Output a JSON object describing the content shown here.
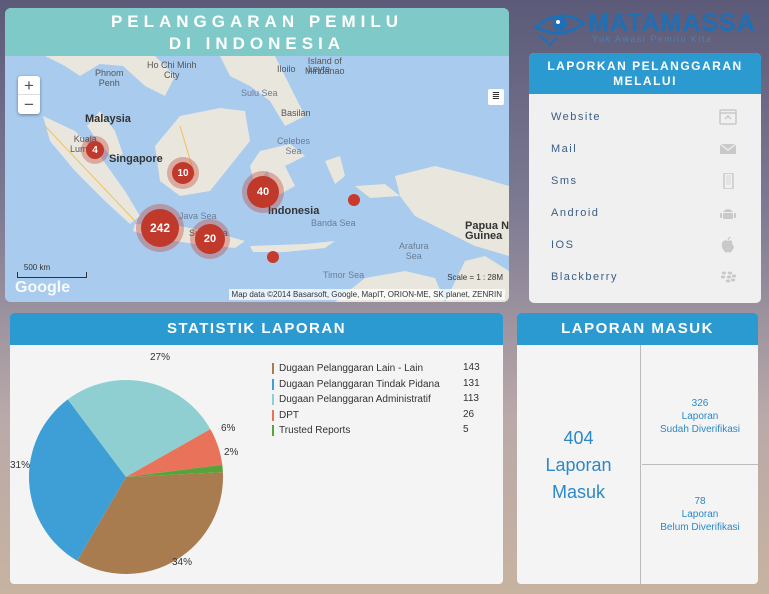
{
  "map_panel": {
    "title_line1": "PELANGGARAN PEMILU",
    "title_line2": "DI INDONESIA",
    "zoom_in": "+",
    "zoom_out": "−",
    "labels": {
      "phnom_penh": "Phnom\nPenh",
      "ho_chi_minh": "Ho Chi Minh\nCity",
      "malaysia": "Malaysia",
      "kuala_lumpur": "Kuala\nLumpur",
      "singapore": "Singapore",
      "sulu_sea": "Sulu Sea",
      "basilan": "Basilan",
      "island_of_mindanao": "Island of\nMindanao",
      "iloilo": "Iloilo",
      "leyte": "Leyte",
      "celebes_sea": "Celebes\nSea",
      "java_sea": "Java Sea",
      "surabaya": "Surabaya",
      "indonesia": "Indonesia",
      "banda_sea": "Banda Sea",
      "arafura_sea": "Arafura\nSea",
      "timor_sea": "Timor Sea",
      "papua_new_guinea": "Papua Ne\nGuinea"
    },
    "clusters": [
      {
        "count": "4"
      },
      {
        "count": "10"
      },
      {
        "count": "40"
      },
      {
        "count": "242"
      },
      {
        "count": "20"
      }
    ],
    "scale_label": "500 km",
    "scale_text": "Scale = 1 : 28M",
    "attribution": "Map data ©2014 Basarsoft, Google, MapIT, ORION-ME, SK planet, ZENRIN",
    "google": "Google"
  },
  "logo": {
    "name": "MATAMASSA",
    "tagline": "Yuk Awasi Pemilu Kita"
  },
  "channels": {
    "heading": "LAPORKAN PELANGGARAN MELALUI",
    "items": [
      {
        "label": "Website",
        "icon": "website-icon"
      },
      {
        "label": "Mail",
        "icon": "mail-icon"
      },
      {
        "label": "Sms",
        "icon": "phone-icon"
      },
      {
        "label": "Android",
        "icon": "android-icon"
      },
      {
        "label": "IOS",
        "icon": "apple-icon"
      },
      {
        "label": "Blackberry",
        "icon": "blackberry-icon"
      }
    ]
  },
  "stats": {
    "heading": "STATISTIK LAPORAN",
    "legend": [
      {
        "label": "Dugaan Pelanggaran Lain - Lain",
        "value": "143",
        "color": "#a97c50"
      },
      {
        "label": "Dugaan Pelanggaran Tindak Pidana",
        "value": "131",
        "color": "#3d9fd6"
      },
      {
        "label": "Dugaan Pelanggaran Administratif",
        "value": "113",
        "color": "#8fcfd1"
      },
      {
        "label": "DPT",
        "value": "26",
        "color": "#e8735a"
      },
      {
        "label": "Trusted Reports",
        "value": "5",
        "color": "#56a33a"
      }
    ],
    "pct_labels": [
      "34%",
      "31%",
      "27%",
      "6%",
      "2%"
    ]
  },
  "chart_data": {
    "type": "pie",
    "categories": [
      "Dugaan Pelanggaran Lain - Lain",
      "Dugaan Pelanggaran Tindak Pidana",
      "Dugaan Pelanggaran Administratif",
      "DPT",
      "Trusted Reports"
    ],
    "values": [
      143,
      131,
      113,
      26,
      5
    ],
    "labels": [
      "34%",
      "31%",
      "27%",
      "6%",
      "2%"
    ],
    "title": "STATISTIK LAPORAN",
    "colors": [
      "#a97c50",
      "#3d9fd6",
      "#8fcfd1",
      "#e8735a",
      "#56a33a"
    ],
    "legend": "right"
  },
  "incoming": {
    "heading": "LAPORAN MASUK",
    "total_number": "404",
    "total_line1": "Laporan",
    "total_line2": "Masuk",
    "verified_number": "326",
    "verified_line1": "Laporan",
    "verified_line2": "Sudah Diverifikasi",
    "unverified_number": "78",
    "unverified_line1": "Laporan",
    "unverified_line2": "Belum Diverifikasi"
  }
}
